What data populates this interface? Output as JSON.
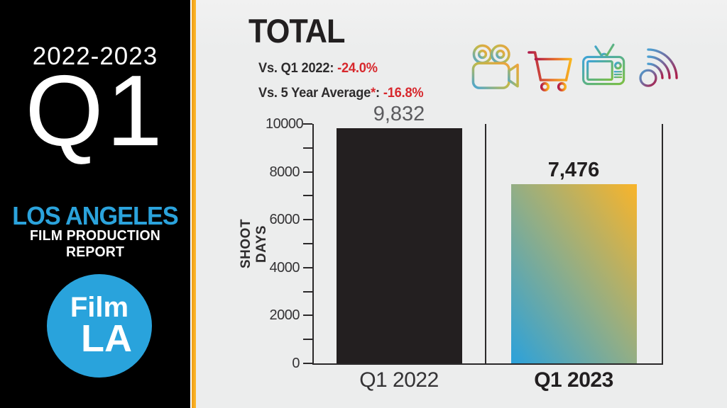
{
  "sidebar": {
    "season": "2022-2023",
    "quarter": "Q1",
    "city": "LOS ANGELES",
    "report_title": "FILM PRODUCTION REPORT",
    "logo_top": "Film",
    "logo_bottom": "LA"
  },
  "main": {
    "title": "TOTAL",
    "comparisons": [
      {
        "label": "Vs. Q1 2022",
        "star": "",
        "colon": ": ",
        "value": "-24.0%"
      },
      {
        "label": "Vs. 5 Year Average",
        "star": "*",
        "colon": ": ",
        "value": "-16.8%"
      }
    ],
    "icons": [
      "film-camera-icon",
      "shopping-cart-icon",
      "television-icon",
      "broadcast-signal-icon"
    ]
  },
  "chart_data": {
    "type": "bar",
    "title": "TOTAL",
    "xlabel": "",
    "ylabel": "SHOOT DAYS",
    "categories": [
      "Q1 2022",
      "Q1 2023"
    ],
    "values": [
      9832,
      7476
    ],
    "value_labels": [
      "9,832",
      "7,476"
    ],
    "ylim": [
      0,
      10000
    ],
    "yticks_labeled": [
      0,
      2000,
      4000,
      6000,
      8000,
      10000
    ],
    "ytick_minor_step": 1000,
    "grid": false,
    "legend": "none",
    "bar_styles": [
      {
        "type": "solid",
        "color": "#231F20",
        "value_label_color": "#5B5B5E",
        "value_label_weight": "400",
        "category_weight": "400"
      },
      {
        "type": "gradient",
        "from": "#2BA1DB",
        "mid": "#93AE85",
        "to": "#F9B42A",
        "direction": "to top right",
        "value_label_color": "#221F20",
        "value_label_weight": "800",
        "category_weight": "800"
      }
    ],
    "annotations": [
      "Vs. Q1 2022: -24.0%",
      "Vs. 5 Year Average*: -16.8%"
    ]
  },
  "colors": {
    "accent_blue": "#2BA3DC",
    "accent_gold": "#F9B021",
    "negative_red": "#D7282D",
    "bar_dark": "#231F20",
    "value_gray": "#5B5B5E",
    "background": "#EDEDED",
    "sidebar_bg": "#000000"
  }
}
